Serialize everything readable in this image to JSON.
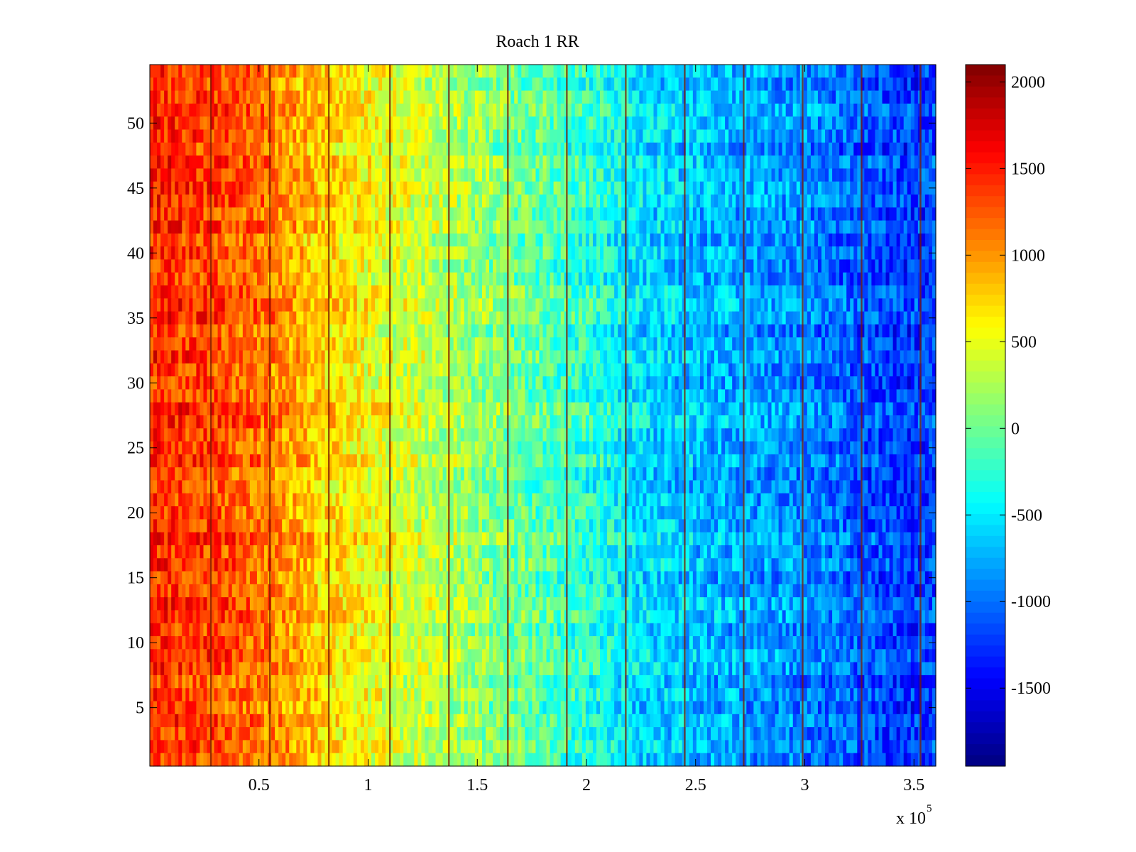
{
  "chart_data": {
    "type": "heatmap",
    "title": "Roach 1 RR",
    "xlabel": "",
    "ylabel": "",
    "x_multiplier_label": "x 10",
    "x_multiplier_exponent": "5",
    "xlim": [
      0,
      3.6
    ],
    "ylim": [
      0.5,
      54.5
    ],
    "xticks": [
      0.5,
      1,
      1.5,
      2,
      2.5,
      3,
      3.5
    ],
    "xtick_labels": [
      "0.5",
      "1",
      "1.5",
      "2",
      "2.5",
      "3",
      "3.5"
    ],
    "yticks": [
      5,
      10,
      15,
      20,
      25,
      30,
      35,
      40,
      45,
      50
    ],
    "ytick_labels": [
      "5",
      "10",
      "15",
      "20",
      "25",
      "30",
      "35",
      "40",
      "45",
      "50"
    ],
    "rows": 54,
    "colormap": "jet",
    "clim": [
      -1950,
      2100
    ],
    "colorbar_ticks": [
      2000,
      1500,
      1000,
      500,
      0,
      -500,
      -1000,
      -1500
    ],
    "colorbar_tick_labels": [
      "2000",
      "1500",
      "1000",
      "500",
      "0",
      "-500",
      "-1000",
      "-1500"
    ],
    "trend_profile": {
      "x_unit": "x 10^5",
      "x": [
        0,
        0.25,
        0.5,
        0.75,
        1.0,
        1.25,
        1.5,
        1.75,
        2.0,
        2.25,
        2.5,
        2.75,
        3.0,
        3.25,
        3.5,
        3.6
      ],
      "mean_value": [
        1450,
        1350,
        1150,
        800,
        550,
        350,
        150,
        -50,
        -250,
        -550,
        -700,
        -800,
        -900,
        -1100,
        -1250,
        -1150
      ]
    },
    "vertical_stripes_x": [
      0.28,
      0.55,
      0.82,
      1.1,
      1.37,
      1.64,
      1.91,
      2.18,
      2.45,
      2.72,
      2.99,
      3.26,
      3.53
    ]
  }
}
